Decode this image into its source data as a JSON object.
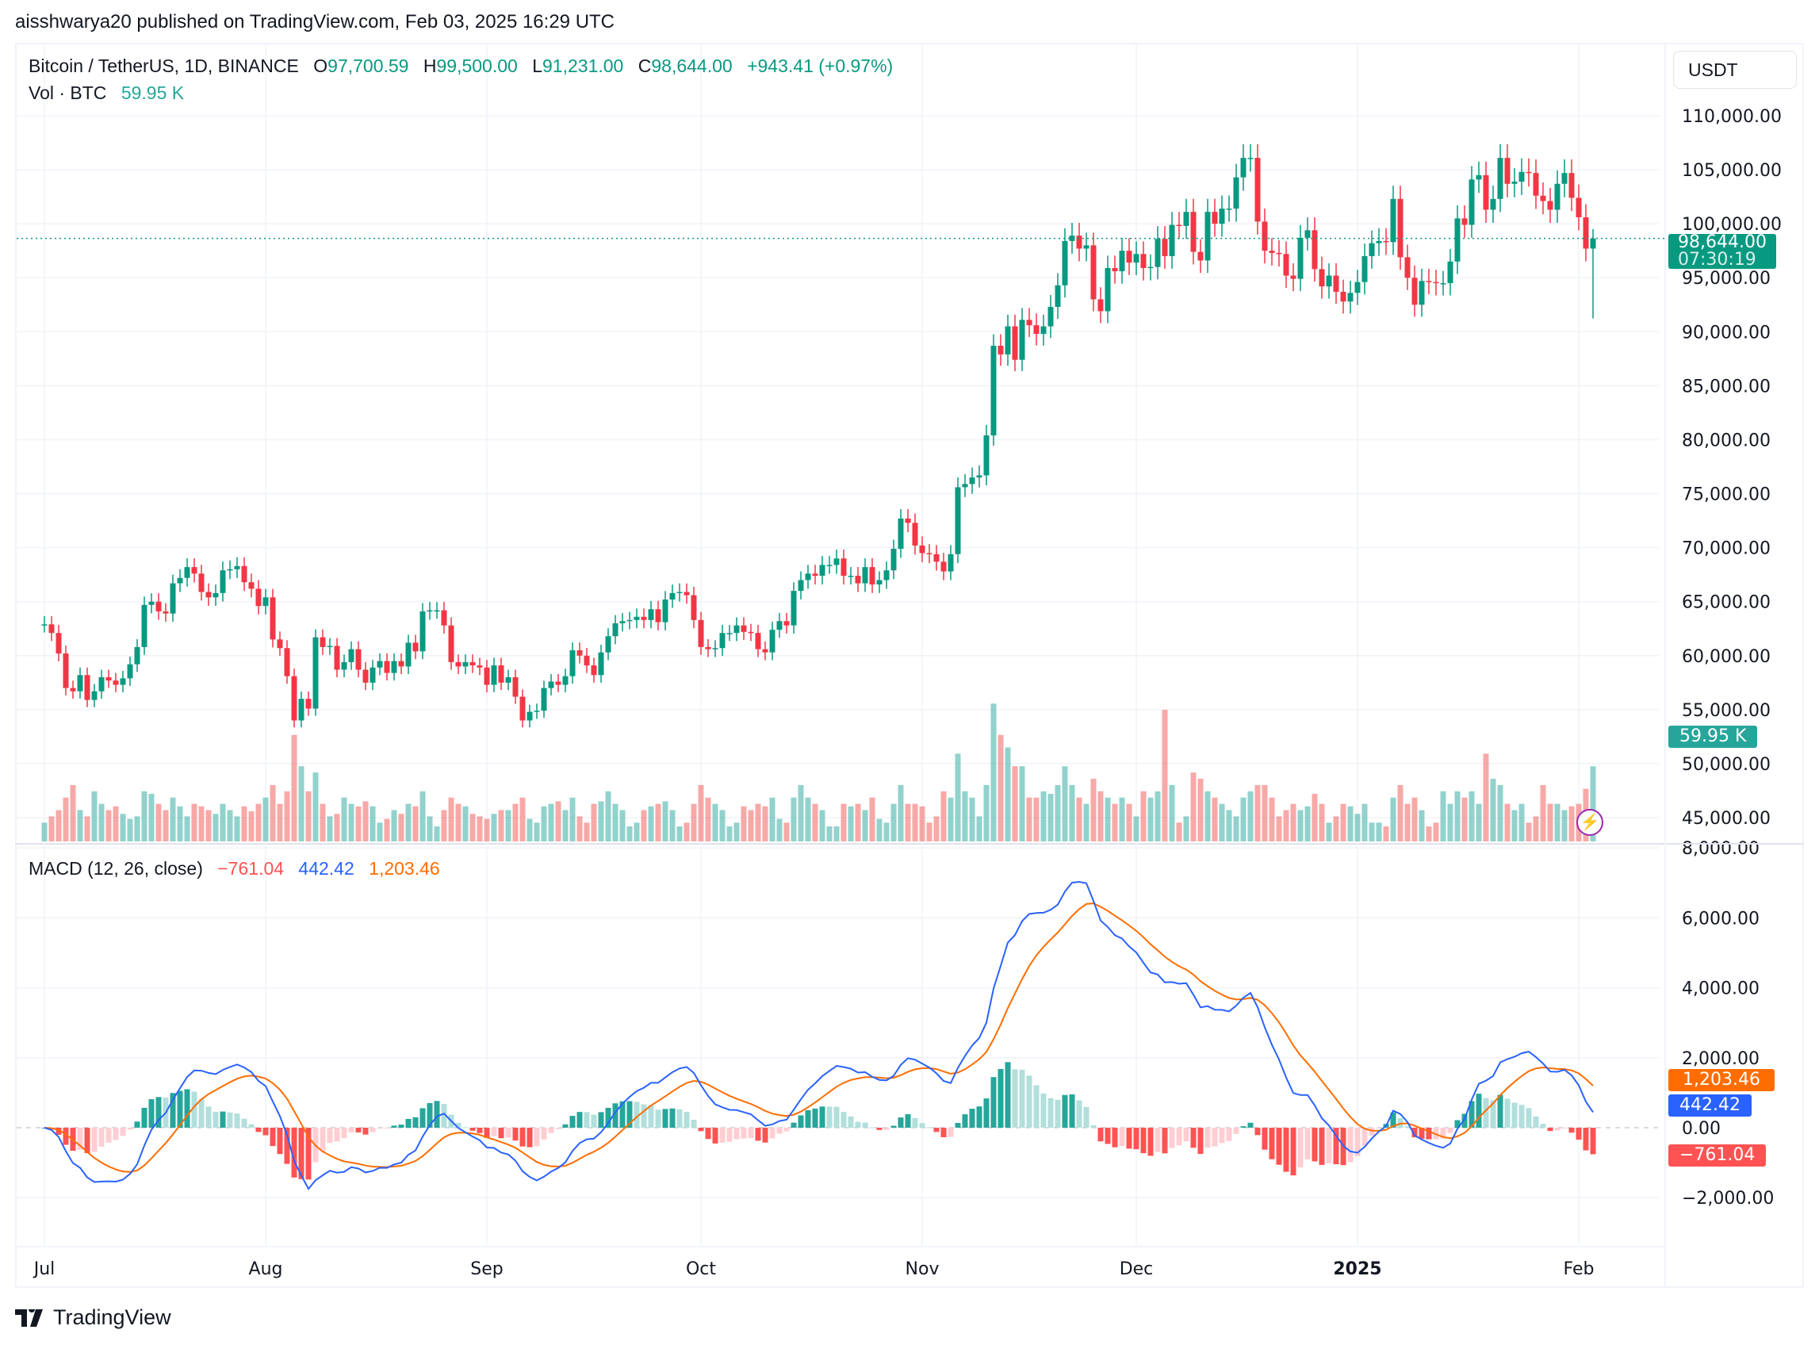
{
  "header": {
    "published": "aisshwarya20 published on TradingView.com, Feb 03, 2025 16:29 UTC"
  },
  "legend": {
    "symbol": "Bitcoin / TetherUS, 1D, BINANCE",
    "o_label": "O",
    "o": "97,700.59",
    "h_label": "H",
    "h": "99,500.00",
    "l_label": "L",
    "l": "91,231.00",
    "c_label": "C",
    "c": "98,644.00",
    "change": "+943.41 (+0.97%)",
    "vol_label": "Vol · BTC",
    "vol": "59.95 K",
    "macd_label": "MACD (12, 26, close)",
    "macd_hist": "−761.04",
    "macd_line": "442.42",
    "macd_signal": "1,203.46"
  },
  "price_axis": {
    "currency": "USDT",
    "last_price": "98,644.00",
    "countdown": "07:30:19",
    "vol_tag": "59.95 K"
  },
  "macd_tags": {
    "signal": "1,203.46",
    "macd": "442.42",
    "hist": "−761.04"
  },
  "colors": {
    "up": "#089981",
    "down": "#f23645",
    "macd": "#2962ff",
    "signal": "#ff6d00",
    "hist_up_strong": "#26a69a",
    "hist_up_weak": "#b2dfdb",
    "hist_down_strong": "#ff5252",
    "hist_down_weak": "#ffcdd2"
  },
  "footer": {
    "brand": "TradingView"
  },
  "chart_data": [
    {
      "type": "candlestick",
      "start_date": "2024-07-01",
      "interval": "1D",
      "ylim": [
        45000,
        110000
      ],
      "y_ticks": [
        "110,000.00",
        "105,000.00",
        "100,000.00",
        "95,000.00",
        "90,000.00",
        "85,000.00",
        "80,000.00",
        "75,000.00",
        "70,000.00",
        "65,000.00",
        "60,000.00",
        "55,000.00",
        "50,000.00",
        "45,000.00"
      ],
      "x_ticks": [
        "Jul",
        "Aug",
        "Sep",
        "Oct",
        "Nov",
        "Dec",
        "2025",
        "Feb"
      ],
      "last_open": 97700.59,
      "last_high": 99500,
      "last_low": 91231,
      "close": [
        62900,
        62100,
        60200,
        57000,
        56700,
        58200,
        55900,
        56700,
        58000,
        57700,
        57300,
        57900,
        59200,
        60800,
        64700,
        65000,
        64100,
        63900,
        66700,
        67200,
        68200,
        67600,
        65900,
        65400,
        65800,
        67900,
        68000,
        68300,
        66800,
        66200,
        64600,
        65400,
        61500,
        60700,
        58100,
        54000,
        56000,
        55100,
        61700,
        60800,
        60900,
        58700,
        59400,
        60600,
        58700,
        57500,
        58900,
        59500,
        58400,
        59500,
        59000,
        61200,
        60400,
        64100,
        64200,
        64200,
        62800,
        59400,
        59000,
        59400,
        59100,
        58900,
        57300,
        59100,
        57500,
        58000,
        56200,
        54000,
        54800,
        54900,
        57000,
        57600,
        57300,
        58100,
        60500,
        60000,
        59100,
        58200,
        60300,
        61800,
        63000,
        63200,
        63300,
        63600,
        63300,
        64300,
        63100,
        65200,
        65800,
        65900,
        65600,
        63300,
        60800,
        60600,
        60700,
        62100,
        62100,
        62800,
        62200,
        62100,
        60600,
        60300,
        62400,
        63200,
        62800,
        66000,
        67000,
        67600,
        67400,
        68400,
        68400,
        69000,
        67400,
        67400,
        66700,
        68200,
        66600,
        67000,
        67900,
        69900,
        72700,
        72300,
        70200,
        69500,
        69400,
        68700,
        67800,
        69400,
        75600,
        75900,
        76500,
        76700,
        80400,
        88700,
        87900,
        90500,
        87400,
        91100,
        90600,
        89800,
        90500,
        92300,
        94300,
        98400,
        98900,
        97700,
        98000,
        93000,
        91900,
        95900,
        95600,
        97500,
        96400,
        97200,
        95900,
        96000,
        98600,
        97000,
        99900,
        99800,
        101100,
        97400,
        96600,
        101100,
        100000,
        101400,
        101400,
        104300,
        106100,
        106100,
        100200,
        97500,
        97300,
        97200,
        95200,
        94900,
        98700,
        99400,
        95800,
        94200,
        95200,
        93700,
        92800,
        93600,
        94600,
        97000,
        98200,
        98400,
        98300,
        102300,
        96900,
        95000,
        92500,
        94700,
        94600,
        94500,
        94500,
        96500,
        100500,
        99900,
        104100,
        104500,
        101300,
        102300,
        106100,
        103700,
        103900,
        104800,
        104700,
        102600,
        102100,
        101300,
        103700,
        104700,
        102400,
        100600,
        97700,
        98644
      ]
    },
    {
      "type": "bar",
      "name": "Vol · BTC",
      "unit": "K BTC",
      "values": [
        15,
        20,
        25,
        35,
        45,
        25,
        20,
        40,
        30,
        25,
        28,
        22,
        18,
        20,
        40,
        38,
        30,
        25,
        35,
        28,
        20,
        30,
        28,
        25,
        22,
        30,
        25,
        20,
        28,
        24,
        30,
        35,
        45,
        30,
        40,
        85,
        60,
        40,
        55,
        30,
        20,
        22,
        35,
        30,
        28,
        32,
        28,
        15,
        18,
        25,
        22,
        30,
        28,
        40,
        20,
        12,
        25,
        35,
        30,
        28,
        22,
        20,
        18,
        22,
        25,
        25,
        30,
        35,
        18,
        15,
        28,
        30,
        32,
        25,
        35,
        20,
        15,
        30,
        32,
        40,
        30,
        25,
        12,
        15,
        25,
        28,
        30,
        32,
        25,
        12,
        15,
        30,
        45,
        35,
        30,
        25,
        12,
        15,
        28,
        25,
        30,
        28,
        35,
        18,
        15,
        35,
        45,
        35,
        30,
        25,
        12,
        12,
        30,
        28,
        30,
        25,
        35,
        18,
        15,
        30,
        45,
        30,
        30,
        28,
        15,
        20,
        40,
        35,
        70,
        40,
        35,
        20,
        45,
        110,
        85,
        75,
        60,
        60,
        35,
        35,
        40,
        38,
        45,
        60,
        45,
        35,
        30,
        50,
        40,
        35,
        30,
        35,
        30,
        20,
        40,
        35,
        40,
        105,
        45,
        15,
        20,
        55,
        50,
        40,
        35,
        30,
        25,
        20,
        35,
        40,
        45,
        45,
        35,
        20,
        25,
        30,
        25,
        28,
        38,
        30,
        15,
        20,
        30,
        28,
        22,
        30,
        15,
        15,
        12,
        35,
        45,
        30,
        35,
        25,
        12,
        15,
        40,
        30,
        40,
        35,
        40,
        30,
        70,
        50,
        45,
        30,
        25,
        30,
        15,
        20,
        45,
        30,
        30,
        25,
        28,
        30,
        42,
        59.95
      ]
    },
    {
      "type": "line+histogram",
      "name": "MACD (12, 26, close)",
      "ylim": [
        -3000,
        8000
      ],
      "y_ticks": [
        "8,000.00",
        "6,000.00",
        "4,000.00",
        "2,000.00",
        "0.00",
        "−2,000.00"
      ],
      "last": {
        "histogram": -761.04,
        "macd": 442.42,
        "signal": 1203.46
      }
    }
  ]
}
